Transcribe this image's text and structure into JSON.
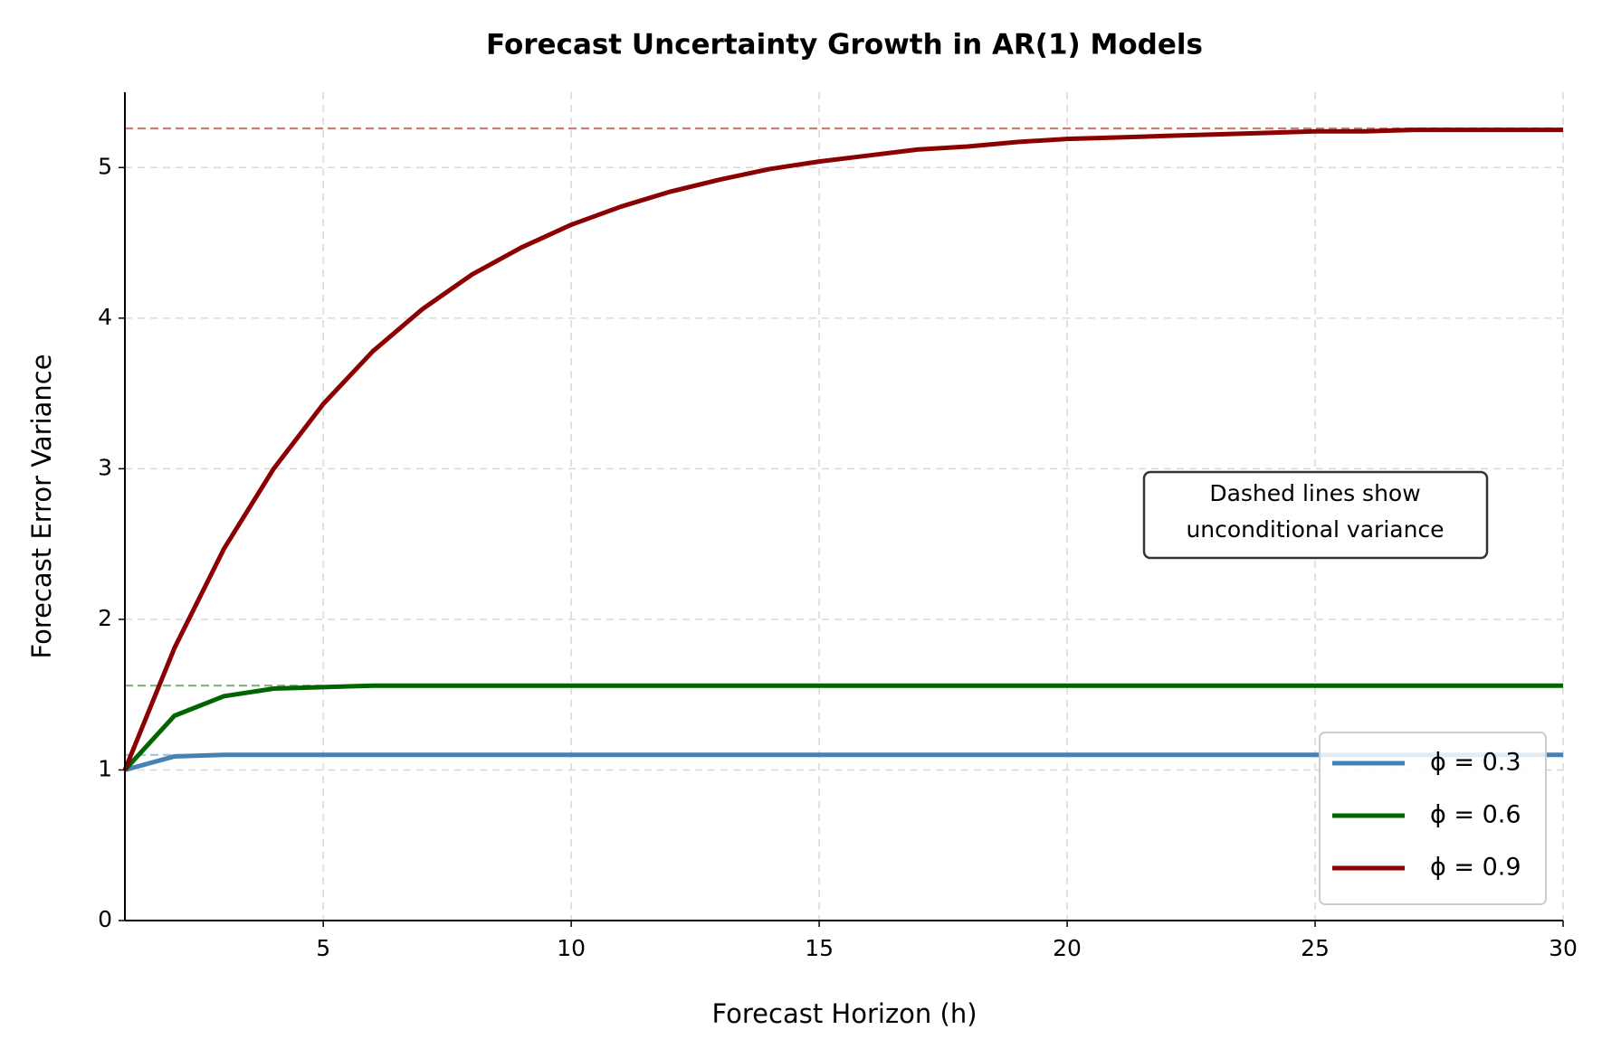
{
  "chart_data": {
    "type": "line",
    "title": "Forecast Uncertainty Growth in AR(1) Models",
    "x_label": "Forecast Horizon (h)",
    "y_label": "Forecast Error Variance",
    "x": [
      1,
      2,
      3,
      4,
      5,
      6,
      7,
      8,
      9,
      10,
      11,
      12,
      13,
      14,
      15,
      16,
      17,
      18,
      19,
      20,
      21,
      22,
      23,
      24,
      25,
      26,
      27,
      28,
      29,
      30
    ],
    "series": [
      {
        "name": "ϕ = 0.3",
        "color": "#4682b4",
        "unconditional": 1.1,
        "values": [
          1,
          1.09,
          1.1,
          1.1,
          1.1,
          1.1,
          1.1,
          1.1,
          1.1,
          1.1,
          1.1,
          1.1,
          1.1,
          1.1,
          1.1,
          1.1,
          1.1,
          1.1,
          1.1,
          1.1,
          1.1,
          1.1,
          1.1,
          1.1,
          1.1,
          1.1,
          1.1,
          1.1,
          1.1,
          1.1
        ]
      },
      {
        "name": "ϕ = 0.6",
        "color": "#006400",
        "unconditional": 1.56,
        "values": [
          1,
          1.36,
          1.49,
          1.54,
          1.55,
          1.56,
          1.56,
          1.56,
          1.56,
          1.56,
          1.56,
          1.56,
          1.56,
          1.56,
          1.56,
          1.56,
          1.56,
          1.56,
          1.56,
          1.56,
          1.56,
          1.56,
          1.56,
          1.56,
          1.56,
          1.56,
          1.56,
          1.56,
          1.56,
          1.56
        ]
      },
      {
        "name": "ϕ = 0.9",
        "color": "#8b0000",
        "unconditional": 5.26,
        "values": [
          1,
          1.81,
          2.47,
          3.0,
          3.43,
          3.78,
          4.06,
          4.29,
          4.47,
          4.62,
          4.74,
          4.84,
          4.92,
          4.99,
          5.04,
          5.08,
          5.12,
          5.14,
          5.17,
          5.19,
          5.2,
          5.21,
          5.22,
          5.23,
          5.24,
          5.24,
          5.25,
          5.25,
          5.25,
          5.25
        ]
      }
    ],
    "xlim": [
      1,
      30
    ],
    "xticks": [
      5,
      10,
      15,
      20,
      25,
      30
    ],
    "ylim": [
      0,
      5.5
    ],
    "yticks": [
      0,
      1,
      2,
      3,
      4,
      5
    ],
    "grid": true,
    "legend": "lower right",
    "annotation": [
      "Dashed lines show",
      "unconditional variance"
    ]
  }
}
